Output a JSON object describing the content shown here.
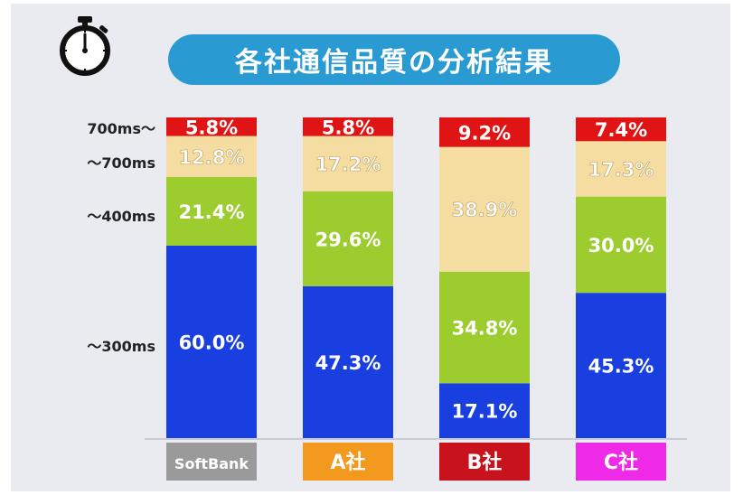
{
  "header": {
    "title": "各社通信品質の分析結果",
    "icon": "stopwatch-icon"
  },
  "colors": {
    "background": "#e9ebf0",
    "title_bg": "#2a9bd2",
    "tier_300": "#1a3fe0",
    "tier_400": "#9ccc2e",
    "tier_700": "#f5dca0",
    "tier_700plus": "#e01414",
    "text_light": "#ffffff",
    "text_dark": "#1a1a1a"
  },
  "chart_data": {
    "type": "bar",
    "stacked": true,
    "normalized_total": 100,
    "title": "各社通信品質の分析結果",
    "categories": [
      "SoftBank",
      "A社",
      "B社",
      "C社"
    ],
    "category_colors": [
      "#9a9a9a",
      "#f39a1e",
      "#c8121c",
      "#ee2ae8"
    ],
    "y_tier_labels": [
      "700ms〜",
      "〜700ms",
      "〜400ms",
      "〜300ms"
    ],
    "series": [
      {
        "name": "〜300ms",
        "color": "#1a3fe0",
        "text_color": "#ffffff",
        "values": [
          60.0,
          47.3,
          17.1,
          45.3
        ],
        "labels": [
          "60.0%",
          "47.3%",
          "17.1%",
          "45.3%"
        ]
      },
      {
        "name": "〜400ms",
        "color": "#9ccc2e",
        "text_color": "#ffffff",
        "values": [
          21.4,
          29.6,
          34.8,
          30.0
        ],
        "labels": [
          "21.4%",
          "29.6%",
          "34.8%",
          "30.0%"
        ]
      },
      {
        "name": "〜700ms",
        "color": "#f5dca0",
        "text_color": "#ffffff",
        "values": [
          12.8,
          17.2,
          38.9,
          17.3
        ],
        "labels": [
          "12.8%",
          "17.2%",
          "38.9%",
          "17.3%"
        ]
      },
      {
        "name": "700ms〜",
        "color": "#e01414",
        "text_color": "#ffffff",
        "values": [
          5.8,
          5.8,
          9.2,
          7.4
        ],
        "labels": [
          "5.8%",
          "5.8%",
          "9.2%",
          "7.4%"
        ]
      }
    ]
  }
}
